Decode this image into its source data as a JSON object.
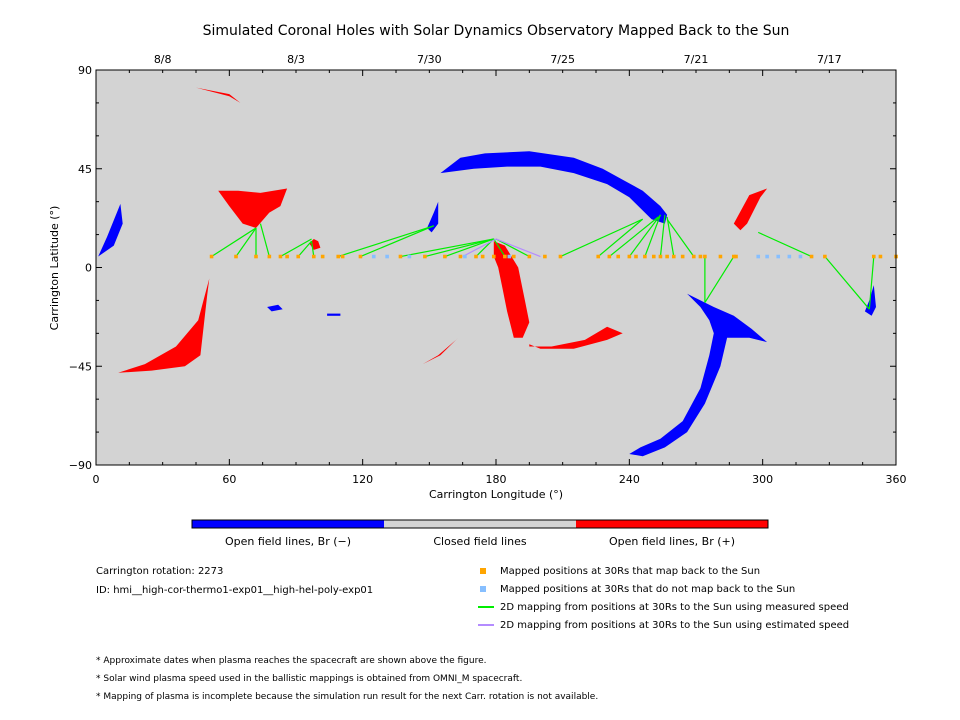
{
  "chart_data": {
    "type": "scatter",
    "title": "Simulated Coronal Holes with Solar Dynamics Observatory Mapped Back to the Sun",
    "xlabel": "Carrington Longitude (°)",
    "ylabel": "Carrington Latitude (°)",
    "xlim": [
      0,
      360
    ],
    "ylim": [
      -90,
      90
    ],
    "x_ticks": [
      "0",
      "60",
      "120",
      "180",
      "240",
      "300",
      "360"
    ],
    "y_ticks": [
      "90",
      "45",
      "0",
      "−45",
      "−90"
    ],
    "top_axis_dates": [
      {
        "label": "8/8",
        "lon": 30
      },
      {
        "label": "8/3",
        "lon": 90
      },
      {
        "label": "7/30",
        "lon": 150
      },
      {
        "label": "7/25",
        "lon": 210
      },
      {
        "label": "7/21",
        "lon": 270
      },
      {
        "label": "7/17",
        "lon": 330
      }
    ],
    "colorbar": {
      "colors": [
        "#0000ff",
        "#d3d3d3",
        "#ff0000"
      ],
      "labels": [
        "Open field lines, Br (−)",
        "Closed field lines",
        "Open field lines, Br (+)"
      ]
    },
    "background_color": "#d3d3d3",
    "negative_color": "#0000ff",
    "positive_color": "#ff0000",
    "mapped_color": "#ffa500",
    "unmapped_color": "#87bfff",
    "measured_line_color": "#00ee00",
    "estimated_line_color": "#b48cff",
    "regions_negative": [
      [
        [
          1,
          5
        ],
        [
          5,
          14
        ],
        [
          9,
          24
        ],
        [
          11,
          29
        ],
        [
          12,
          20
        ],
        [
          8,
          10
        ]
      ],
      [
        [
          151,
          16
        ],
        [
          154,
          20
        ],
        [
          154,
          30
        ],
        [
          152,
          25
        ],
        [
          149,
          18
        ]
      ],
      [
        [
          155,
          43
        ],
        [
          164,
          50
        ],
        [
          175,
          52
        ],
        [
          195,
          53
        ],
        [
          215,
          50
        ],
        [
          228,
          45
        ],
        [
          237,
          40
        ],
        [
          246,
          35
        ],
        [
          254,
          28
        ],
        [
          257,
          24
        ],
        [
          256,
          20
        ],
        [
          250,
          22
        ],
        [
          240,
          32
        ],
        [
          230,
          38
        ],
        [
          215,
          43
        ],
        [
          200,
          46
        ],
        [
          185,
          46
        ],
        [
          170,
          45
        ]
      ],
      [
        [
          266,
          -12
        ],
        [
          272,
          -18
        ],
        [
          276,
          -24
        ],
        [
          278,
          -30
        ],
        [
          276,
          -40
        ],
        [
          272,
          -55
        ],
        [
          264,
          -70
        ],
        [
          254,
          -78
        ],
        [
          245,
          -82
        ],
        [
          240,
          -85
        ],
        [
          246,
          -86
        ],
        [
          256,
          -82
        ],
        [
          266,
          -75
        ],
        [
          274,
          -62
        ],
        [
          281,
          -45
        ],
        [
          284,
          -32
        ],
        [
          294,
          -32
        ],
        [
          302,
          -34
        ],
        [
          295,
          -28
        ],
        [
          287,
          -22
        ],
        [
          278,
          -18
        ]
      ],
      [
        [
          346,
          -20
        ],
        [
          348,
          -15
        ],
        [
          350,
          -8
        ],
        [
          351,
          -18
        ],
        [
          349,
          -22
        ]
      ],
      [
        [
          77,
          -18
        ],
        [
          82,
          -17
        ],
        [
          84,
          -19
        ],
        [
          79,
          -20
        ]
      ],
      [
        [
          104,
          -21
        ],
        [
          110,
          -21
        ],
        [
          110,
          -22
        ],
        [
          104,
          -22
        ]
      ]
    ],
    "regions_positive": [
      [
        [
          10,
          -48
        ],
        [
          22,
          -44
        ],
        [
          36,
          -36
        ],
        [
          46,
          -24
        ],
        [
          51,
          -5
        ],
        [
          50,
          -13
        ],
        [
          47,
          -40
        ],
        [
          40,
          -45
        ],
        [
          25,
          -47
        ]
      ],
      [
        [
          55,
          35
        ],
        [
          64,
          35
        ],
        [
          74,
          34
        ],
        [
          86,
          36
        ],
        [
          83,
          28
        ],
        [
          78,
          25
        ],
        [
          72,
          18
        ],
        [
          66,
          20
        ],
        [
          60,
          28
        ]
      ],
      [
        [
          98,
          13
        ],
        [
          100,
          12
        ],
        [
          101,
          9
        ],
        [
          98,
          8
        ],
        [
          96,
          11
        ]
      ],
      [
        [
          179,
          12
        ],
        [
          184,
          10
        ],
        [
          190,
          0
        ],
        [
          193,
          -15
        ],
        [
          195,
          -25
        ],
        [
          192,
          -32
        ],
        [
          188,
          -32
        ],
        [
          185,
          -20
        ],
        [
          183,
          -10
        ],
        [
          181,
          0
        ],
        [
          179,
          5
        ]
      ],
      [
        [
          195,
          -35
        ],
        [
          200,
          -37
        ],
        [
          215,
          -37
        ],
        [
          230,
          -33
        ],
        [
          237,
          -30
        ],
        [
          230,
          -27
        ],
        [
          220,
          -33
        ],
        [
          205,
          -36
        ],
        [
          195,
          -36
        ]
      ],
      [
        [
          147,
          -44
        ],
        [
          155,
          -40
        ],
        [
          163,
          -32
        ],
        [
          162,
          -33
        ],
        [
          154,
          -40
        ]
      ],
      [
        [
          287,
          20
        ],
        [
          294,
          33
        ],
        [
          302,
          36
        ],
        [
          299,
          32
        ],
        [
          293,
          20
        ],
        [
          290,
          17
        ]
      ],
      [
        [
          36,
          83
        ],
        [
          45,
          82
        ],
        [
          60,
          78
        ],
        [
          65,
          75
        ],
        [
          60,
          79
        ],
        [
          45,
          82
        ]
      ]
    ],
    "mapped_points": [
      [
        52,
        5
      ],
      [
        63,
        5
      ],
      [
        72,
        5
      ],
      [
        78,
        5
      ],
      [
        83,
        5
      ],
      [
        86,
        5
      ],
      [
        91,
        5
      ],
      [
        98,
        5
      ],
      [
        102,
        5
      ],
      [
        109,
        5
      ],
      [
        111,
        5
      ],
      [
        119,
        5
      ],
      [
        137,
        5
      ],
      [
        148,
        5
      ],
      [
        157,
        5
      ],
      [
        164,
        5
      ],
      [
        171,
        5
      ],
      [
        174,
        5
      ],
      [
        179,
        5
      ],
      [
        184,
        5
      ],
      [
        188,
        5
      ],
      [
        195,
        5
      ],
      [
        202,
        5
      ],
      [
        209,
        5
      ],
      [
        226,
        5
      ],
      [
        231,
        5
      ],
      [
        235,
        5
      ],
      [
        240,
        5
      ],
      [
        243,
        5
      ],
      [
        247,
        5
      ],
      [
        251,
        5
      ],
      [
        254,
        5
      ],
      [
        257,
        5
      ],
      [
        260,
        5
      ],
      [
        264,
        5
      ],
      [
        269,
        5
      ],
      [
        272,
        5
      ],
      [
        274,
        5
      ],
      [
        281,
        5
      ],
      [
        287,
        5
      ],
      [
        288,
        5
      ],
      [
        322,
        5
      ],
      [
        328,
        5
      ],
      [
        350,
        5
      ],
      [
        353,
        5
      ],
      [
        360,
        5
      ]
    ],
    "unmapped_points": [
      [
        125,
        5
      ],
      [
        131,
        5
      ],
      [
        141,
        5
      ],
      [
        166,
        5
      ],
      [
        186,
        5
      ],
      [
        298,
        5
      ],
      [
        302,
        5
      ],
      [
        307,
        5
      ],
      [
        312,
        5
      ],
      [
        317,
        5
      ]
    ],
    "mapping_lines": [
      {
        "from": [
          52,
          5
        ],
        "to": [
          72,
          18
        ]
      },
      {
        "from": [
          63,
          5
        ],
        "to": [
          72,
          18
        ]
      },
      {
        "from": [
          72,
          5
        ],
        "to": [
          72,
          18
        ]
      },
      {
        "from": [
          78,
          5
        ],
        "to": [
          74,
          20
        ]
      },
      {
        "from": [
          83,
          5
        ],
        "to": [
          97,
          13
        ]
      },
      {
        "from": [
          91,
          5
        ],
        "to": [
          97,
          12
        ]
      },
      {
        "from": [
          98,
          5
        ],
        "to": [
          97,
          12
        ]
      },
      {
        "from": [
          109,
          5
        ],
        "to": [
          152,
          19
        ]
      },
      {
        "from": [
          119,
          5
        ],
        "to": [
          152,
          19
        ]
      },
      {
        "from": [
          137,
          5
        ],
        "to": [
          179,
          13
        ]
      },
      {
        "from": [
          148,
          5
        ],
        "to": [
          179,
          13
        ]
      },
      {
        "from": [
          157,
          5
        ],
        "to": [
          179,
          13
        ]
      },
      {
        "from": [
          171,
          5
        ],
        "to": [
          179,
          13
        ]
      },
      {
        "from": [
          184,
          5
        ],
        "to": [
          179,
          13
        ]
      },
      {
        "from": [
          195,
          5
        ],
        "to": [
          180,
          13
        ]
      },
      {
        "from": [
          209,
          5
        ],
        "to": [
          246,
          22
        ]
      },
      {
        "from": [
          226,
          5
        ],
        "to": [
          246,
          22
        ]
      },
      {
        "from": [
          231,
          5
        ],
        "to": [
          253,
          23
        ]
      },
      {
        "from": [
          240,
          5
        ],
        "to": [
          254,
          24
        ]
      },
      {
        "from": [
          247,
          5
        ],
        "to": [
          254,
          24
        ]
      },
      {
        "from": [
          254,
          5
        ],
        "to": [
          256,
          24
        ]
      },
      {
        "from": [
          260,
          5
        ],
        "to": [
          257,
          23
        ]
      },
      {
        "from": [
          269,
          5
        ],
        "to": [
          257,
          22
        ]
      },
      {
        "from": [
          274,
          5
        ],
        "to": [
          274,
          -16
        ]
      },
      {
        "from": [
          287,
          5
        ],
        "to": [
          274,
          -16
        ]
      },
      {
        "from": [
          322,
          5
        ],
        "to": [
          298,
          16
        ]
      },
      {
        "from": [
          328,
          5
        ],
        "to": [
          348,
          -19
        ]
      },
      {
        "from": [
          350,
          5
        ],
        "to": [
          348,
          -19
        ]
      }
    ],
    "estimated_lines": [
      {
        "from": [
          200,
          5
        ],
        "to": [
          180,
          13
        ]
      },
      {
        "from": [
          165,
          5
        ],
        "to": [
          180,
          13
        ]
      }
    ],
    "info": {
      "rotation": "Carrington rotation: 2273",
      "id": "ID: hmi__high-cor-thermo1-exp01__high-hel-poly-exp01"
    },
    "legend": [
      {
        "kind": "square",
        "color": "#ffa500",
        "label": "Mapped positions at 30Rs that map back to the Sun"
      },
      {
        "kind": "square",
        "color": "#87bfff",
        "label": "Mapped positions at 30Rs that do not map back to the Sun"
      },
      {
        "kind": "line",
        "color": "#00ee00",
        "label": "2D mapping from positions at 30Rs to the Sun using measured speed"
      },
      {
        "kind": "line",
        "color": "#b48cff",
        "label": "2D mapping from positions at 30Rs to the Sun using estimated speed"
      }
    ],
    "footnotes": [
      "* Approximate dates when plasma reaches the spacecraft are shown above the figure.",
      "* Solar wind plasma speed used in the ballistic mappings is obtained from OMNI_M spacecraft.",
      "* Mapping of plasma is incomplete because the simulation run result for the next Carr. rotation is not available."
    ]
  }
}
